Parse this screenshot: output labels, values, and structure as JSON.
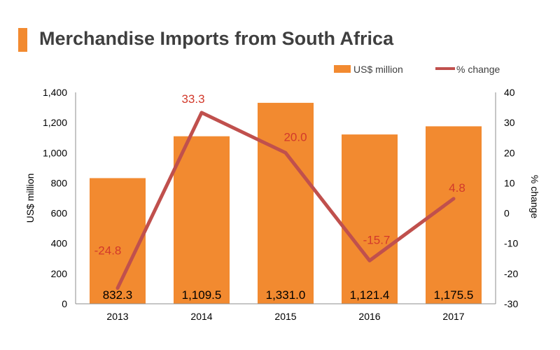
{
  "title": "Merchandise Imports from South Africa",
  "colors": {
    "accent": "#F28A30",
    "bar": "#F28A30",
    "line": "#C0504D",
    "line_label": "#D2392B",
    "title_text": "#3F3F3F"
  },
  "chart_data": {
    "type": "bar",
    "categories": [
      "2013",
      "2014",
      "2015",
      "2016",
      "2017"
    ],
    "series": [
      {
        "name": "US$ million",
        "type": "bar",
        "axis": "left",
        "values": [
          832.3,
          1109.5,
          1331.0,
          1121.4,
          1175.5
        ],
        "labels": [
          "832.3",
          "1,109.5",
          "1,331.0",
          "1,121.4",
          "1,175.5"
        ]
      },
      {
        "name": "% change",
        "type": "line",
        "axis": "right",
        "values": [
          -24.8,
          33.3,
          20.0,
          -15.7,
          4.8
        ],
        "labels": [
          "-24.8",
          "33.3",
          "20.0",
          "-15.7",
          "4.8"
        ]
      }
    ],
    "ylabel": "US$ million",
    "y2label": "% change",
    "ylim": [
      0,
      1400
    ],
    "y2lim": [
      -30,
      40
    ],
    "yticks": [
      "0",
      "200",
      "400",
      "600",
      "800",
      "1,000",
      "1,200",
      "1,400"
    ],
    "y2ticks": [
      "-30",
      "-20",
      "-10",
      "0",
      "10",
      "20",
      "30",
      "40"
    ],
    "legend_position": "top-right",
    "grid": false
  }
}
